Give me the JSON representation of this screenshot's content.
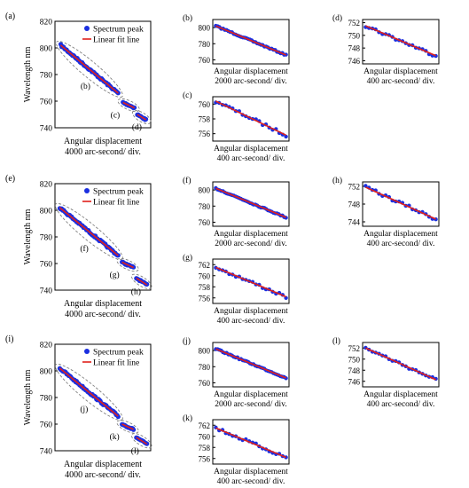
{
  "colors": {
    "data": "#1b2fe0",
    "fit": "#e0201b",
    "axis": "#000000",
    "ellipse": "#808080"
  },
  "legend": {
    "peak": "Spectrum peak",
    "fit": "Linear fit line"
  },
  "rows": [
    {
      "main": {
        "label": "(a)",
        "ylabel": "Wavelength nm",
        "xlabel": [
          "Angular displacement",
          "4000 arc-second/ div."
        ],
        "ylim": [
          740,
          820
        ],
        "yticks": [
          740,
          760,
          780,
          800,
          820
        ],
        "segments": [
          {
            "x": [
              0.06,
              0.66
            ],
            "y": [
              802,
              766
            ],
            "name": "(b)"
          },
          {
            "x": [
              0.71,
              0.83
            ],
            "y": [
              759,
              755
            ],
            "name": "(c)"
          },
          {
            "x": [
              0.86,
              0.95
            ],
            "y": [
              750,
              746
            ],
            "name": "(d)"
          }
        ]
      },
      "subs": [
        {
          "label": "(b)",
          "ylim": [
            755,
            810
          ],
          "yticks": [
            760,
            780,
            800
          ],
          "y": [
            802,
            766
          ],
          "xlabel": [
            "Angular displacement",
            "2000 arc-second/ div."
          ]
        },
        {
          "label": "(c)",
          "ylim": [
            755,
            761
          ],
          "yticks": [
            756,
            758,
            760
          ],
          "y": [
            760.4,
            755.8
          ],
          "xlabel": [
            "Angular displacement",
            "400 arc-second/ div."
          ]
        },
        {
          "label": "(d)",
          "ylim": [
            745.5,
            752.5
          ],
          "yticks": [
            746,
            748,
            750,
            752
          ],
          "y": [
            751.5,
            746.8
          ],
          "xlabel": [
            "Angular displacement",
            "400 arc-second/ div."
          ]
        }
      ]
    },
    {
      "main": {
        "label": "(e)",
        "ylabel": "Wavelength nm",
        "xlabel": [
          "Angular displacement",
          "4000 arc-second/ div."
        ],
        "ylim": [
          740,
          820
        ],
        "yticks": [
          740,
          760,
          780,
          800,
          820
        ],
        "segments": [
          {
            "x": [
              0.05,
              0.66
            ],
            "y": [
              802,
              766
            ],
            "name": "(f)"
          },
          {
            "x": [
              0.7,
              0.82
            ],
            "y": [
              761,
              757
            ],
            "name": "(g)"
          },
          {
            "x": [
              0.85,
              0.96
            ],
            "y": [
              749,
              744
            ],
            "name": "(h)"
          }
        ]
      },
      "subs": [
        {
          "label": "(f)",
          "ylim": [
            755,
            810
          ],
          "yticks": [
            760,
            780,
            800
          ],
          "y": [
            802,
            766
          ],
          "xlabel": [
            "Angular displacement",
            "2000 arc-second/ div."
          ]
        },
        {
          "label": "(g)",
          "ylim": [
            755,
            763
          ],
          "yticks": [
            756,
            758,
            760,
            762
          ],
          "y": [
            761.5,
            756.2
          ],
          "xlabel": [
            "Angular displacement",
            "400 arc-second/ div."
          ]
        },
        {
          "label": "(h)",
          "ylim": [
            743,
            753
          ],
          "yticks": [
            744,
            748,
            752
          ],
          "y": [
            751.8,
            744.6
          ],
          "xlabel": [
            "Angular displacement",
            "400 arc-second/ div."
          ]
        }
      ]
    },
    {
      "main": {
        "label": "(i)",
        "ylabel": "Wavelength nm",
        "xlabel": [
          "Angular displacement",
          "4000 arc-second/ div."
        ],
        "ylim": [
          740,
          820
        ],
        "yticks": [
          740,
          760,
          780,
          800,
          820
        ],
        "segments": [
          {
            "x": [
              0.05,
              0.66
            ],
            "y": [
              802,
              766
            ],
            "name": "(j)"
          },
          {
            "x": [
              0.7,
              0.82
            ],
            "y": [
              760,
              756
            ],
            "name": "(k)"
          },
          {
            "x": [
              0.85,
              0.96
            ],
            "y": [
              750,
              745
            ],
            "name": "(l)"
          }
        ]
      },
      "subs": [
        {
          "label": "(j)",
          "ylim": [
            755,
            810
          ],
          "yticks": [
            760,
            780,
            800
          ],
          "y": [
            802,
            766
          ],
          "xlabel": [
            "Angular displacement",
            "2000 arc-second/ div."
          ]
        },
        {
          "label": "(k)",
          "ylim": [
            755,
            763
          ],
          "yticks": [
            756,
            758,
            760,
            762
          ],
          "y": [
            761.5,
            756.2
          ],
          "xlabel": [
            "Angular displacement",
            "400 arc-second/ div."
          ]
        },
        {
          "label": "(l)",
          "ylim": [
            745,
            753
          ],
          "yticks": [
            746,
            748,
            750,
            752
          ],
          "y": [
            752,
            746.3
          ],
          "xlabel": [
            "Angular displacement",
            "400 arc-second/ div."
          ]
        }
      ]
    }
  ],
  "chart_data": [
    {
      "type": "scatter",
      "panel": "(a)",
      "series": [
        {
          "name": "Spectrum peak"
        },
        {
          "name": "Linear fit line"
        }
      ],
      "ylabel": "Wavelength nm",
      "xlabel": "Angular displacement 4000 arc-second/ div.",
      "ylim": [
        740,
        820
      ],
      "y_ranges": [
        [
          802,
          766
        ],
        [
          759,
          755
        ],
        [
          750,
          746
        ]
      ]
    },
    {
      "type": "scatter",
      "panel": "(b)",
      "ylim": [
        755,
        810
      ],
      "y_range": [
        802,
        766
      ],
      "xlabel": "Angular displacement 2000 arc-second/ div."
    },
    {
      "type": "scatter",
      "panel": "(c)",
      "ylim": [
        755,
        761
      ],
      "y_range": [
        760.4,
        755.8
      ],
      "xlabel": "Angular displacement 400 arc-second/ div."
    },
    {
      "type": "scatter",
      "panel": "(d)",
      "ylim": [
        745.5,
        752.5
      ],
      "y_range": [
        751.5,
        746.8
      ],
      "xlabel": "Angular displacement 400 arc-second/ div."
    },
    {
      "type": "scatter",
      "panel": "(e)",
      "ylim": [
        740,
        820
      ],
      "y_ranges": [
        [
          802,
          766
        ],
        [
          761,
          757
        ],
        [
          749,
          744
        ]
      ]
    },
    {
      "type": "scatter",
      "panel": "(f)",
      "ylim": [
        755,
        810
      ],
      "y_range": [
        802,
        766
      ]
    },
    {
      "type": "scatter",
      "panel": "(g)",
      "ylim": [
        755,
        763
      ],
      "y_range": [
        761.5,
        756.2
      ]
    },
    {
      "type": "scatter",
      "panel": "(h)",
      "ylim": [
        743,
        753
      ],
      "y_range": [
        751.8,
        744.6
      ]
    },
    {
      "type": "scatter",
      "panel": "(i)",
      "ylim": [
        740,
        820
      ],
      "y_ranges": [
        [
          802,
          766
        ],
        [
          760,
          756
        ],
        [
          750,
          745
        ]
      ]
    },
    {
      "type": "scatter",
      "panel": "(j)",
      "ylim": [
        755,
        810
      ],
      "y_range": [
        802,
        766
      ]
    },
    {
      "type": "scatter",
      "panel": "(k)",
      "ylim": [
        755,
        763
      ],
      "y_range": [
        761.5,
        756.2
      ]
    },
    {
      "type": "scatter",
      "panel": "(l)",
      "ylim": [
        745,
        753
      ],
      "y_range": [
        752,
        746.3
      ]
    }
  ]
}
